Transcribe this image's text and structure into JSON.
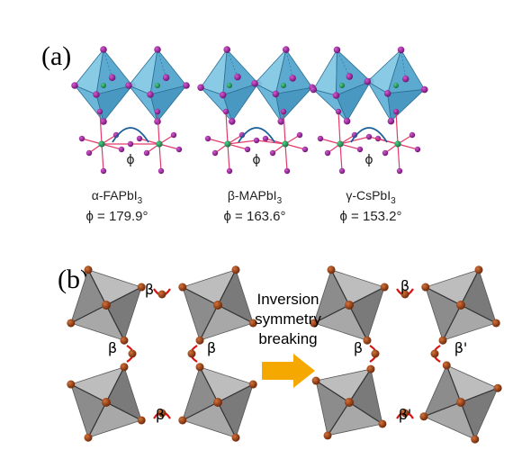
{
  "panel_a": {
    "label": "(a)",
    "structures": [
      {
        "name": "α-FAPbI",
        "sub": "3",
        "phi_value": "ϕ = 179.9°"
      },
      {
        "name": "β-MAPbI",
        "sub": "3",
        "phi_value": "ϕ = 163.6°"
      },
      {
        "name": "γ-CsPbI",
        "sub": "3",
        "phi_value": "ϕ = 153.2°"
      }
    ],
    "angle_symbol": "ϕ"
  },
  "panel_b": {
    "label": "(b)",
    "arrow_text": [
      "Inversion",
      "symmetry",
      "breaking"
    ],
    "left_angles": [
      "β",
      "β",
      "β",
      "β"
    ],
    "right_angles": [
      "β",
      "β",
      "β'",
      "β'"
    ]
  },
  "colors": {
    "octahedron_blue": "#6ab7d8",
    "iodine_magenta": "#8a1a8a",
    "lead_green": "#1e8a4a",
    "octahedron_gray": "#9a9a9a",
    "atom_brown": "#8a3410",
    "angle_red": "#dd1010",
    "arrow_orange": "#f5a800"
  }
}
